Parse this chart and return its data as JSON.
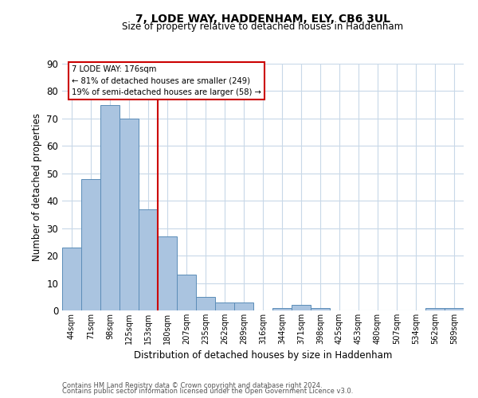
{
  "title1": "7, LODE WAY, HADDENHAM, ELY, CB6 3UL",
  "title2": "Size of property relative to detached houses in Haddenham",
  "xlabel": "Distribution of detached houses by size in Haddenham",
  "ylabel": "Number of detached properties",
  "footnote1": "Contains HM Land Registry data © Crown copyright and database right 2024.",
  "footnote2": "Contains public sector information licensed under the Open Government Licence v3.0.",
  "annotation_line1": "7 LODE WAY: 176sqm",
  "annotation_line2": "← 81% of detached houses are smaller (249)",
  "annotation_line3": "19% of semi-detached houses are larger (58) →",
  "bar_labels": [
    "44sqm",
    "71sqm",
    "98sqm",
    "125sqm",
    "153sqm",
    "180sqm",
    "207sqm",
    "235sqm",
    "262sqm",
    "289sqm",
    "316sqm",
    "344sqm",
    "371sqm",
    "398sqm",
    "425sqm",
    "453sqm",
    "480sqm",
    "507sqm",
    "534sqm",
    "562sqm",
    "589sqm"
  ],
  "bar_values": [
    23,
    48,
    75,
    70,
    37,
    27,
    13,
    5,
    3,
    3,
    0,
    1,
    2,
    1,
    0,
    0,
    0,
    0,
    0,
    1,
    1
  ],
  "bar_color": "#aac4e0",
  "bar_edge_color": "#5b8db8",
  "vline_color": "#cc0000",
  "vline_x_idx": 5,
  "annotation_box_edge_color": "#cc0000",
  "background_color": "#ffffff",
  "grid_color": "#c8d8e8",
  "ylim": [
    0,
    90
  ],
  "yticks": [
    0,
    10,
    20,
    30,
    40,
    50,
    60,
    70,
    80,
    90
  ]
}
